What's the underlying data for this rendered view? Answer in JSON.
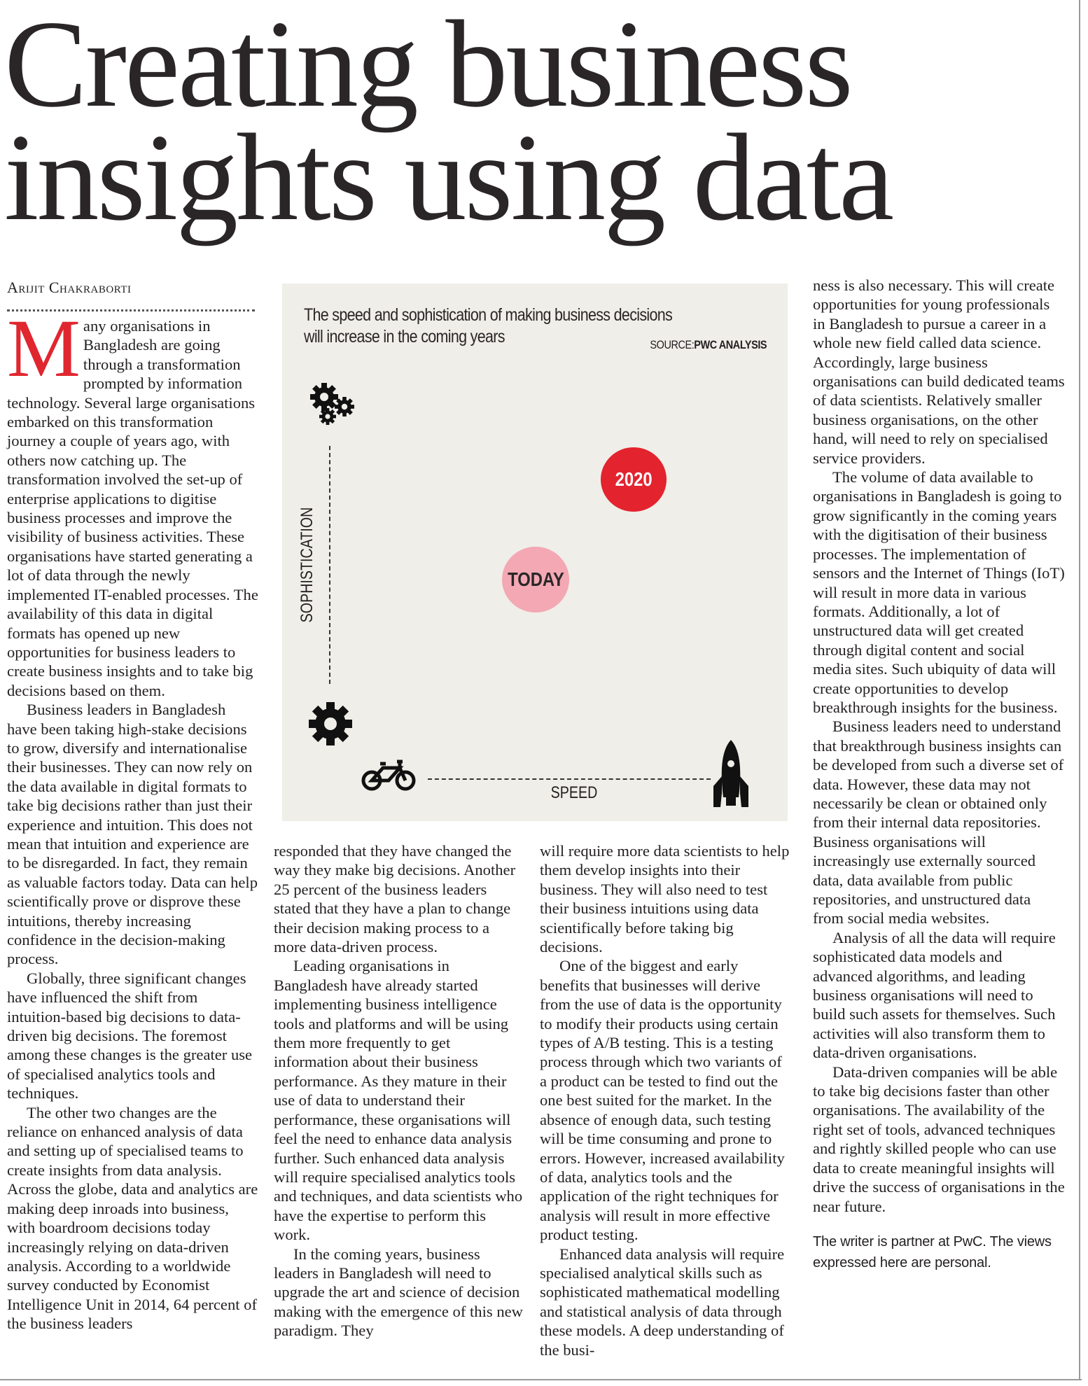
{
  "headline": {
    "line1": "Creating business",
    "line2": "insights using data"
  },
  "byline": "Arijit Chakraborti",
  "figure": {
    "title_line1": "The speed and sophistication of making business decisions",
    "title_line2": "will increase in the coming years",
    "source_label": "SOURCE:",
    "source_name": "PWC ANALYSIS",
    "y_axis_label": "SOPHISTICATION",
    "x_axis_label": "SPEED",
    "bubbles": [
      {
        "label": "2020",
        "color": "#e3232e"
      },
      {
        "label": "TODAY",
        "color": "#f3a8b4"
      }
    ],
    "icons": {
      "y_low": "gear-icon",
      "y_high": "gears-icon",
      "x_low": "bicycle-icon",
      "x_high": "rocket-icon"
    }
  },
  "colors": {
    "dropcap": "#e0262f"
  },
  "article": {
    "dropcap": "M",
    "col1": [
      "any organisations in Bangladesh are going through a transformation prompted by information technology. Several large organisations embarked on this transformation journey a couple of years ago, with others now catching up. The transformation involved the set-up of enterprise applications to digitise business processes and improve the visibility of business activities. These organisations have started generating a lot of data through the newly implemented IT-enabled processes. The availability of this data in digital formats has opened up new opportunities for business leaders to create business insights and to take big decisions based on them.",
      "Business leaders in Bangladesh have been taking high-stake decisions to grow, diversify and internationalise their businesses. They can now rely on the data available in digital formats to take big decisions rather than just their experience and intuition. This does not mean that intuition and experience are to be disregarded. In fact, they remain as valuable factors today. Data can help scientifically prove or disprove these intuitions, thereby increasing confidence in the decision-making process.",
      "Globally, three significant changes have influenced the shift from intuition-based big decisions to data-driven big decisions. The foremost among these changes is the greater use of specialised analytics tools and techniques.",
      "The other two changes are the reliance on enhanced analysis of data and setting up of specialised teams to create insights from data analysis. Across the globe, data and analytics are making deep inroads into business, with boardroom decisions today increasingly relying on data-driven analysis. According to a worldwide survey conducted by Economist Intelligence Unit in 2014, 64 percent of the business leaders"
    ],
    "col2": [
      "responded that they have changed the way they make big decisions. Another 25 percent of the business leaders stated that they have a plan to change their decision making process to a more data-driven process.",
      "Leading organisations in Bangladesh have already started implementing business intelligence tools and platforms and will be using them more frequently to get information about their business performance. As they mature in their use of data to understand their performance, these organisations will feel the need to enhance data analysis further. Such enhanced data analysis will require specialised analytics tools and techniques, and data scientists who have the expertise to perform this work.",
      "In the coming years, business leaders in Bangladesh will need to upgrade the art and science of decision making with the emergence of this new paradigm. They"
    ],
    "col3": [
      "will require more data scientists to help them develop insights into their business. They will also need to test their business intuitions using data scientifically before taking big decisions.",
      "One of the biggest and early benefits that businesses will derive from the use of data is the opportunity to modify their products using certain types of A/B testing. This is a testing process through which two variants of a product can be tested to find out the one best suited for the market. In the absence of enough data, such testing will be time consuming and prone to errors. However, increased availability of data, analytics tools and the application of the right techniques for analysis will result in more effective product testing.",
      "Enhanced data analysis will require specialised analytical skills such as sophisticated mathematical modelling and statistical analysis of data through these models. A deep understanding of the busi-"
    ],
    "col4": [
      "ness is also necessary. This will create opportunities for young professionals in Bangladesh to pursue a career in a whole new field called data science. Accordingly, large business organisations can build dedicated teams of data scientists. Relatively smaller business organisations, on the other hand, will need to rely on specialised service providers.",
      "The volume of data available to organisations in Bangladesh is going to grow significantly in the coming years with the digitisation of their business processes. The implementation of sensors and the Internet of Things (IoT) will result in more data in various formats. Additionally, a lot of unstructured data will get created through digital content and social media sites. Such ubiquity of data will create opportunities to develop breakthrough insights for the business.",
      "Business leaders need to understand that breakthrough business insights can be developed from such a diverse set of data. However, these data may not necessarily be clean or obtained only from their internal data repositories. Business organisations will increasingly use externally sourced data, data available from public repositories, and unstructured data from social media websites.",
      "Analysis of all the data will require sophisticated data models and advanced algorithms, and leading business organisations will need to build such assets for themselves. Such activities will also transform them to data-driven organisations.",
      "Data-driven companies will be able to take big decisions faster than other organisations. The availability of the right set of tools, advanced techniques and rightly skilled people who can use data to create meaningful insights will drive the success of organisations in the near future."
    ],
    "footnote": "The writer is partner at PwC. The views expressed here are personal."
  }
}
